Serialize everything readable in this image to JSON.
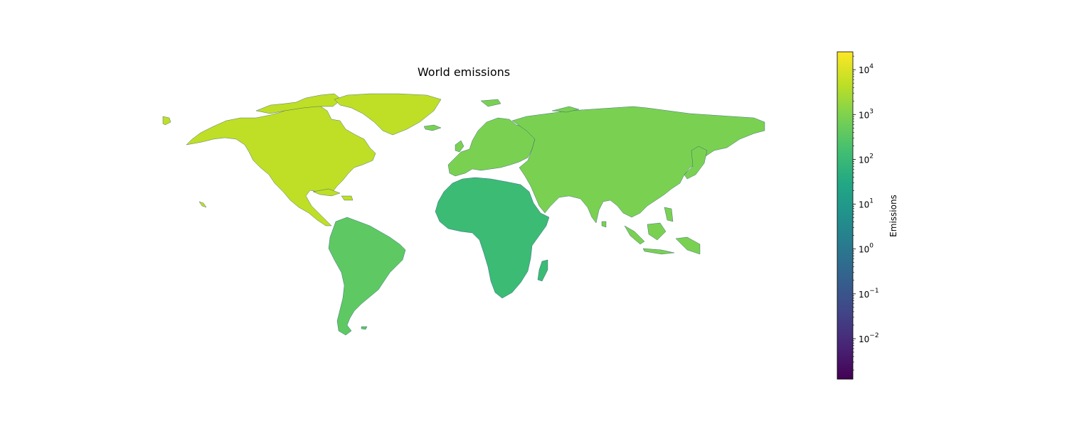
{
  "title": "World emissions",
  "colorbar": {
    "label": "Emissions",
    "scale": "log",
    "colormap": "viridis",
    "range": [
      0.00125,
      25000
    ],
    "ticks": [
      {
        "value": 0.01,
        "base": "10",
        "exp": "−2"
      },
      {
        "value": 0.1,
        "base": "10",
        "exp": "−1"
      },
      {
        "value": 1,
        "base": "10",
        "exp": "0"
      },
      {
        "value": 10,
        "base": "10",
        "exp": "1"
      },
      {
        "value": 100,
        "base": "10",
        "exp": "2"
      },
      {
        "value": 1000,
        "base": "10",
        "exp": "3"
      },
      {
        "value": 10000,
        "base": "10",
        "exp": "4"
      }
    ]
  },
  "regions": [
    {
      "name": "North America",
      "color": "#bedf26"
    },
    {
      "name": "South America",
      "color": "#5ec962"
    },
    {
      "name": "Europe",
      "color": "#7ad151"
    },
    {
      "name": "Asia",
      "color": "#7ad151"
    },
    {
      "name": "Africa",
      "color": "#3cbb75"
    },
    {
      "name": "Oceania",
      "color": "#5ec962"
    }
  ]
}
